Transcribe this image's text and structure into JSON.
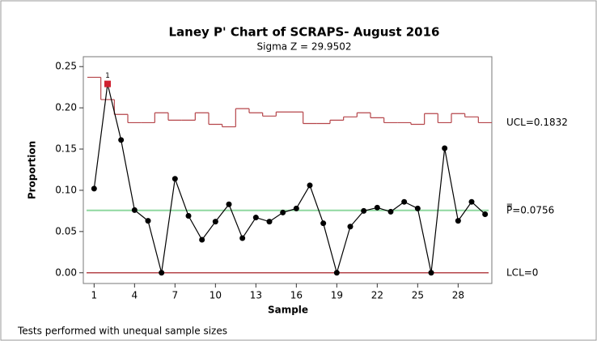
{
  "chart_data": {
    "type": "control",
    "title": "Laney P' Chart of SCRAPS- August 2016",
    "subtitle": "Sigma Z = 29.9502",
    "x_label": "Sample",
    "y_label": "Proportion",
    "footnote": "Tests performed with unequal sample sizes",
    "x": [
      1,
      2,
      3,
      4,
      5,
      6,
      7,
      8,
      9,
      10,
      11,
      12,
      13,
      14,
      15,
      16,
      17,
      18,
      19,
      20,
      21,
      22,
      23,
      24,
      25,
      26,
      27,
      28,
      29,
      30
    ],
    "series": [
      {
        "name": "Proportion",
        "color": "#000000",
        "values": [
          0.102,
          0.229,
          0.161,
          0.076,
          0.063,
          0,
          0.114,
          0.069,
          0.04,
          0.062,
          0.083,
          0.042,
          0.067,
          0.062,
          0.073,
          0.078,
          0.106,
          0.06,
          0,
          0.056,
          0.075,
          0.079,
          0.074,
          0.086,
          0.078,
          0,
          0.151,
          0.063,
          0.086,
          0.071
        ]
      }
    ],
    "ucl": {
      "label": "UCL=0.1832",
      "color": "#b5454a",
      "values": [
        0.237,
        0.21,
        0.192,
        0.182,
        0.182,
        0.194,
        0.185,
        0.185,
        0.194,
        0.18,
        0.177,
        0.199,
        0.194,
        0.19,
        0.195,
        0.195,
        0.181,
        0.181,
        0.185,
        0.189,
        0.194,
        0.188,
        0.182,
        0.182,
        0.18,
        0.193,
        0.182,
        0.193,
        0.189,
        0.182
      ]
    },
    "center": {
      "label": "P̿=0.0756",
      "value": 0.0756,
      "color": "#8fd8a0"
    },
    "lcl": {
      "label": "LCL=0",
      "value": 0,
      "color": "#b5454a"
    },
    "annotations": [
      {
        "x": 2,
        "text": "1",
        "color": "#d02030"
      }
    ],
    "xlim": [
      0.2,
      30.5
    ],
    "ylim": [
      -0.013,
      0.262
    ],
    "xticks": [
      1,
      4,
      7,
      10,
      13,
      16,
      19,
      22,
      25,
      28
    ],
    "yticks": [
      {
        "value": 0,
        "label": "0.00"
      },
      {
        "value": 0.05,
        "label": "0.05"
      },
      {
        "value": 0.1,
        "label": "0.10"
      },
      {
        "value": 0.15,
        "label": "0.15"
      },
      {
        "value": 0.2,
        "label": "0.20"
      },
      {
        "value": 0.25,
        "label": "0.25"
      }
    ]
  }
}
